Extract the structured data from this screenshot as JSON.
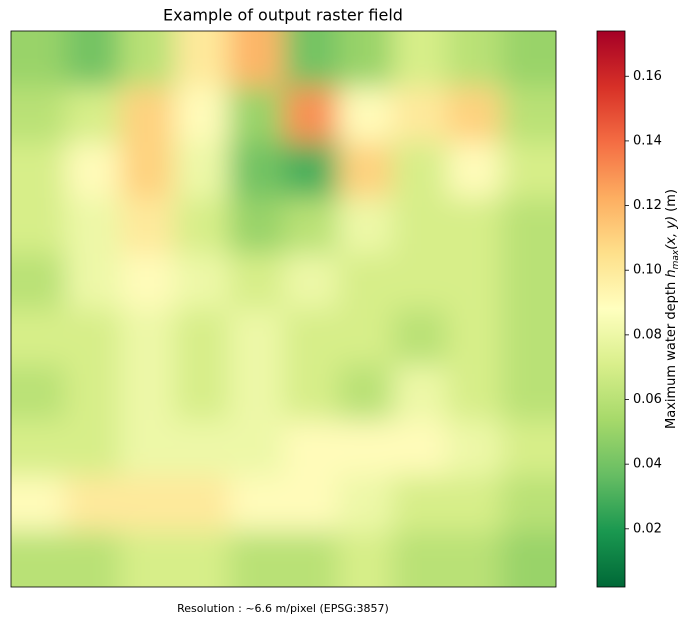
{
  "chart_data": {
    "type": "raster",
    "title": "Example of output raster field",
    "caption": "Resolution : ~6.6 m/pixel (EPSG:3857)",
    "colorbar_label": {
      "text": "Maximum water depth",
      "symbol": "h",
      "subscript": "max",
      "args": "(x, y)",
      "unit": "(m)"
    },
    "colormap": [
      "#006837",
      "#1a9850",
      "#66bd63",
      "#a6d96a",
      "#d9ef8b",
      "#ffffbf",
      "#fee08b",
      "#fdae61",
      "#f46d43",
      "#d73027",
      "#a50026"
    ],
    "clim": [
      0.002,
      0.174
    ],
    "cticks": [
      0.02,
      0.04,
      0.06,
      0.08,
      0.1,
      0.12,
      0.14,
      0.16
    ],
    "z": [
      [
        0.05,
        0.04,
        0.06,
        0.1,
        0.12,
        0.04,
        0.05,
        0.07,
        0.06,
        0.05
      ],
      [
        0.06,
        0.07,
        0.11,
        0.09,
        0.05,
        0.13,
        0.09,
        0.1,
        0.11,
        0.06
      ],
      [
        0.07,
        0.09,
        0.11,
        0.08,
        0.04,
        0.03,
        0.11,
        0.07,
        0.09,
        0.07
      ],
      [
        0.07,
        0.08,
        0.1,
        0.07,
        0.05,
        0.06,
        0.08,
        0.07,
        0.07,
        0.06
      ],
      [
        0.06,
        0.08,
        0.09,
        0.08,
        0.07,
        0.08,
        0.07,
        0.07,
        0.07,
        0.06
      ],
      [
        0.07,
        0.07,
        0.08,
        0.07,
        0.08,
        0.07,
        0.07,
        0.06,
        0.07,
        0.06
      ],
      [
        0.06,
        0.07,
        0.08,
        0.07,
        0.08,
        0.07,
        0.06,
        0.08,
        0.07,
        0.06
      ],
      [
        0.07,
        0.07,
        0.08,
        0.08,
        0.08,
        0.09,
        0.09,
        0.09,
        0.08,
        0.07
      ],
      [
        0.09,
        0.1,
        0.1,
        0.1,
        0.09,
        0.09,
        0.08,
        0.07,
        0.07,
        0.06
      ],
      [
        0.06,
        0.06,
        0.07,
        0.07,
        0.06,
        0.06,
        0.07,
        0.06,
        0.06,
        0.05
      ]
    ]
  }
}
